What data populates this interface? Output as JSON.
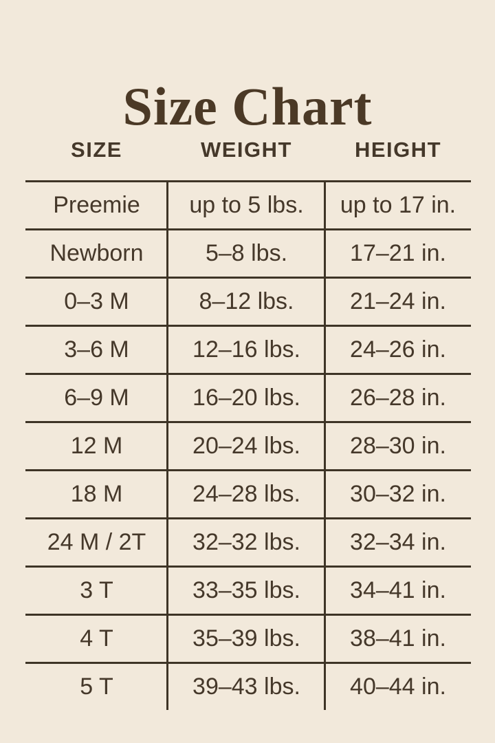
{
  "title": "Size Chart",
  "table": {
    "headers": [
      "SIZE",
      "WEIGHT",
      "HEIGHT"
    ],
    "rows": [
      [
        "Preemie",
        "up to 5 lbs.",
        "up to 17 in."
      ],
      [
        "Newborn",
        "5–8 lbs.",
        "17–21 in."
      ],
      [
        "0–3 M",
        "8–12 lbs.",
        "21–24 in."
      ],
      [
        "3–6 M",
        "12–16 lbs.",
        "24–26 in."
      ],
      [
        "6–9 M",
        "16–20 lbs.",
        "26–28 in."
      ],
      [
        "12 M",
        "20–24 lbs.",
        "28–30 in."
      ],
      [
        "18 M",
        "24–28 lbs.",
        "30–32 in."
      ],
      [
        "24 M / 2T",
        "32–32 lbs.",
        "32–34 in."
      ],
      [
        "3 T",
        "33–35 lbs.",
        "34–41 in."
      ],
      [
        "4 T",
        "35–39 lbs.",
        "38–41 in."
      ],
      [
        "5 T",
        "39–43 lbs.",
        "40–44 in."
      ]
    ]
  },
  "colors": {
    "background": "#F2E9DB",
    "text": "#45382A",
    "title": "#4B3926",
    "line": "#3E3426"
  }
}
